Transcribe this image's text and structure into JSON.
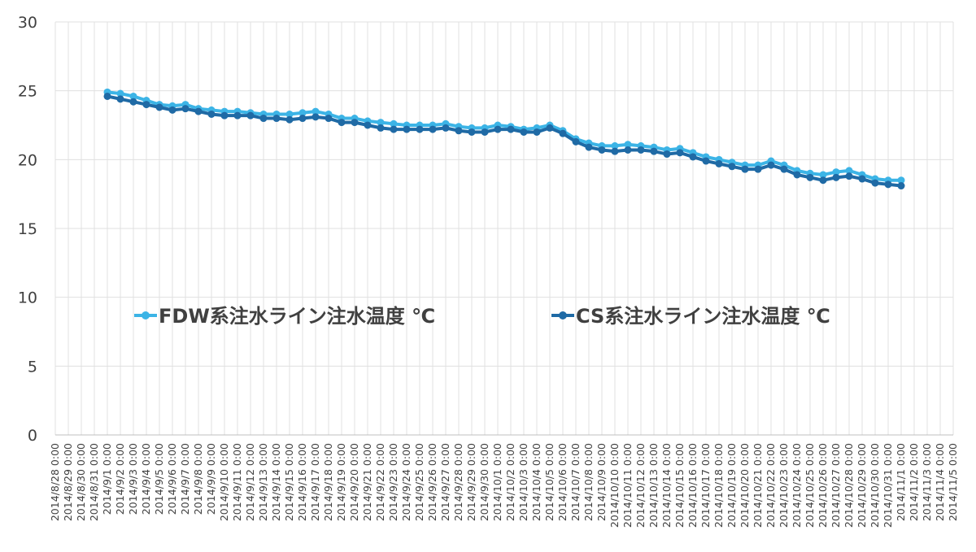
{
  "chart_data": {
    "type": "line",
    "categories": [
      "2014/8/28 0:00",
      "2014/8/29 0:00",
      "2014/8/30 0:00",
      "2014/8/31 0:00",
      "2014/9/1 0:00",
      "2014/9/2 0:00",
      "2014/9/3 0:00",
      "2014/9/4 0:00",
      "2014/9/5 0:00",
      "2014/9/6 0:00",
      "2014/9/7 0:00",
      "2014/9/8 0:00",
      "2014/9/9 0:00",
      "2014/9/10 0:00",
      "2014/9/11 0:00",
      "2014/9/12 0:00",
      "2014/9/13 0:00",
      "2014/9/14 0:00",
      "2014/9/15 0:00",
      "2014/9/16 0:00",
      "2014/9/17 0:00",
      "2014/9/18 0:00",
      "2014/9/19 0:00",
      "2014/9/20 0:00",
      "2014/9/21 0:00",
      "2014/9/22 0:00",
      "2014/9/23 0:00",
      "2014/9/24 0:00",
      "2014/9/25 0:00",
      "2014/9/26 0:00",
      "2014/9/27 0:00",
      "2014/9/28 0:00",
      "2014/9/29 0:00",
      "2014/9/30 0:00",
      "2014/10/1 0:00",
      "2014/10/2 0:00",
      "2014/10/3 0:00",
      "2014/10/4 0:00",
      "2014/10/5 0:00",
      "2014/10/6 0:00",
      "2014/10/7 0:00",
      "2014/10/8 0:00",
      "2014/10/9 0:00",
      "2014/10/10 0:00",
      "2014/10/11 0:00",
      "2014/10/12 0:00",
      "2014/10/13 0:00",
      "2014/10/14 0:00",
      "2014/10/15 0:00",
      "2014/10/16 0:00",
      "2014/10/17 0:00",
      "2014/10/18 0:00",
      "2014/10/19 0:00",
      "2014/10/20 0:00",
      "2014/10/21 0:00",
      "2014/10/22 0:00",
      "2014/10/23 0:00",
      "2014/10/24 0:00",
      "2014/10/25 0:00",
      "2014/10/26 0:00",
      "2014/10/27 0:00",
      "2014/10/28 0:00",
      "2014/10/29 0:00",
      "2014/10/30 0:00",
      "2014/10/31 0:00",
      "2014/11/1 0:00",
      "2014/11/2 0:00",
      "2014/11/3 0:00",
      "2014/11/4 0:00",
      "2014/11/5 0:00"
    ],
    "series": [
      {
        "name": "FDW系注水ライン注水温度 ℃",
        "color": "#3cb4e6",
        "values": [
          null,
          null,
          null,
          null,
          24.9,
          24.8,
          24.6,
          24.3,
          24.0,
          23.9,
          24.0,
          23.7,
          23.6,
          23.5,
          23.5,
          23.4,
          23.3,
          23.3,
          23.3,
          23.4,
          23.5,
          23.3,
          23.0,
          23.0,
          22.8,
          22.7,
          22.6,
          22.5,
          22.5,
          22.5,
          22.6,
          22.4,
          22.3,
          22.3,
          22.5,
          22.4,
          22.2,
          22.3,
          22.5,
          22.1,
          21.5,
          21.2,
          21.0,
          21.0,
          21.1,
          21.0,
          20.9,
          20.7,
          20.8,
          20.5,
          20.2,
          20.0,
          19.8,
          19.6,
          19.6,
          19.9,
          19.6,
          19.2,
          19.0,
          18.9,
          19.1,
          19.2,
          18.9,
          18.6,
          18.5,
          18.5,
          null,
          null,
          null,
          null
        ]
      },
      {
        "name": "CS系注水ライン注水温度 ℃",
        "color": "#1f6aa5",
        "values": [
          null,
          null,
          null,
          null,
          24.6,
          24.4,
          24.2,
          24.0,
          23.8,
          23.6,
          23.7,
          23.5,
          23.3,
          23.2,
          23.2,
          23.2,
          23.0,
          23.0,
          22.9,
          23.0,
          23.1,
          23.0,
          22.7,
          22.7,
          22.5,
          22.3,
          22.2,
          22.2,
          22.2,
          22.2,
          22.3,
          22.1,
          22.0,
          22.0,
          22.2,
          22.2,
          22.0,
          22.0,
          22.3,
          21.9,
          21.3,
          20.9,
          20.7,
          20.6,
          20.7,
          20.7,
          20.6,
          20.4,
          20.5,
          20.2,
          19.9,
          19.7,
          19.5,
          19.3,
          19.3,
          19.6,
          19.3,
          18.9,
          18.7,
          18.5,
          18.7,
          18.8,
          18.6,
          18.3,
          18.2,
          18.1,
          null,
          null,
          null,
          null
        ]
      }
    ],
    "ylim": [
      0,
      30
    ],
    "yticks": [
      0,
      5,
      10,
      15,
      20,
      25,
      30
    ],
    "grid": true
  }
}
